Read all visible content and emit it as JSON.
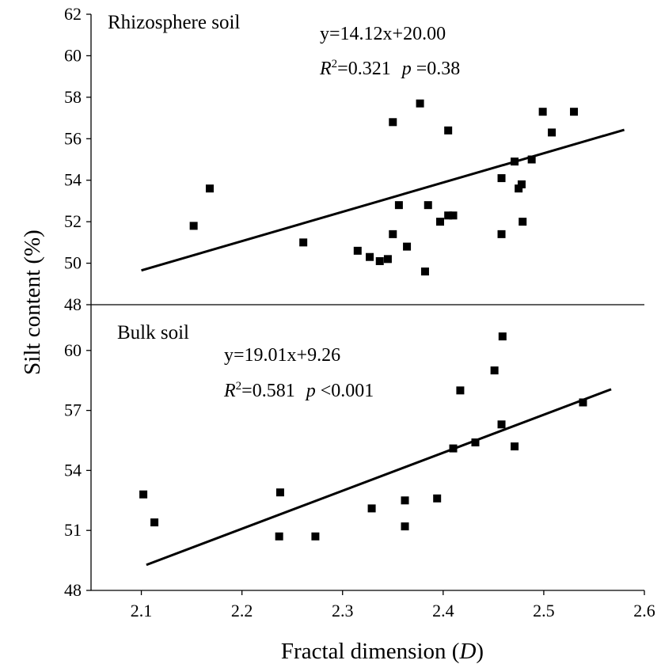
{
  "chart_data": [
    {
      "type": "scatter",
      "panel_label": "Rhizosphere soil",
      "equation": "y=14.12x+20.00",
      "r2_prefix": "R",
      "r2_sup": "2",
      "r2_value": "=0.321",
      "p_symbol": "p",
      "p_value": " =0.38",
      "xlim": [
        2.05,
        2.6
      ],
      "ylim": [
        48,
        62
      ],
      "yticks": [
        48,
        50,
        52,
        54,
        56,
        58,
        60,
        62
      ],
      "fit": {
        "slope": 14.12,
        "intercept": 20.0,
        "x_range": [
          2.1,
          2.58
        ]
      },
      "points": [
        {
          "x": 2.152,
          "y": 51.8
        },
        {
          "x": 2.168,
          "y": 53.6
        },
        {
          "x": 2.261,
          "y": 51.0
        },
        {
          "x": 2.315,
          "y": 50.6
        },
        {
          "x": 2.327,
          "y": 50.3
        },
        {
          "x": 2.337,
          "y": 50.1
        },
        {
          "x": 2.345,
          "y": 50.2
        },
        {
          "x": 2.35,
          "y": 51.4
        },
        {
          "x": 2.35,
          "y": 56.8
        },
        {
          "x": 2.356,
          "y": 52.8
        },
        {
          "x": 2.364,
          "y": 50.8
        },
        {
          "x": 2.377,
          "y": 57.7
        },
        {
          "x": 2.382,
          "y": 49.6
        },
        {
          "x": 2.385,
          "y": 52.8
        },
        {
          "x": 2.397,
          "y": 52.0
        },
        {
          "x": 2.405,
          "y": 52.3
        },
        {
          "x": 2.405,
          "y": 56.4
        },
        {
          "x": 2.41,
          "y": 52.3
        },
        {
          "x": 2.458,
          "y": 54.1
        },
        {
          "x": 2.458,
          "y": 51.4
        },
        {
          "x": 2.471,
          "y": 54.9
        },
        {
          "x": 2.475,
          "y": 53.6
        },
        {
          "x": 2.478,
          "y": 53.8
        },
        {
          "x": 2.479,
          "y": 52.0
        },
        {
          "x": 2.488,
          "y": 55.0
        },
        {
          "x": 2.499,
          "y": 57.3
        },
        {
          "x": 2.508,
          "y": 56.3
        },
        {
          "x": 2.53,
          "y": 57.3
        }
      ]
    },
    {
      "type": "scatter",
      "panel_label": "Bulk soil",
      "equation": "y=19.01x+9.26",
      "r2_prefix": "R",
      "r2_sup": "2",
      "r2_value": "=0.581",
      "p_symbol": "p",
      "p_value": " <0.001",
      "xlim": [
        2.05,
        2.6
      ],
      "ylim": [
        48,
        63
      ],
      "yticks": [
        48,
        51,
        54,
        57,
        60
      ],
      "xticks": [
        "2.1",
        "2.2",
        "2.3",
        "2.4",
        "2.5",
        "2.6"
      ],
      "xlabel_main": "Fractal dimension (",
      "xlabel_var": "D",
      "xlabel_end": ")",
      "fit": {
        "slope": 19.01,
        "intercept": 9.26,
        "x_range": [
          2.105,
          2.567
        ]
      },
      "points": [
        {
          "x": 2.102,
          "y": 52.8
        },
        {
          "x": 2.113,
          "y": 51.4
        },
        {
          "x": 2.237,
          "y": 50.7
        },
        {
          "x": 2.238,
          "y": 52.9
        },
        {
          "x": 2.273,
          "y": 50.7
        },
        {
          "x": 2.329,
          "y": 52.1
        },
        {
          "x": 2.362,
          "y": 52.5
        },
        {
          "x": 2.362,
          "y": 51.2
        },
        {
          "x": 2.394,
          "y": 52.6
        },
        {
          "x": 2.41,
          "y": 55.1
        },
        {
          "x": 2.417,
          "y": 58.0
        },
        {
          "x": 2.432,
          "y": 55.4
        },
        {
          "x": 2.451,
          "y": 59.0
        },
        {
          "x": 2.458,
          "y": 56.3
        },
        {
          "x": 2.459,
          "y": 60.7
        },
        {
          "x": 2.471,
          "y": 55.2
        },
        {
          "x": 2.539,
          "y": 57.4
        }
      ]
    }
  ],
  "ylabel": "Silt content (%)"
}
